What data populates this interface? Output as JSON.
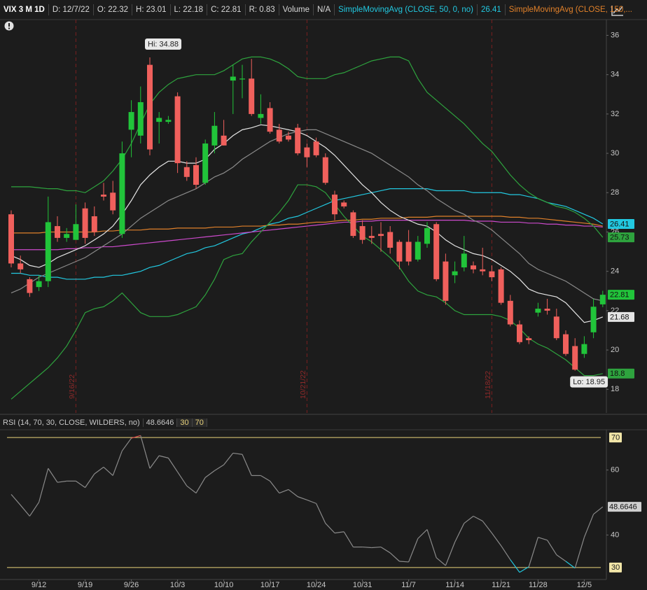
{
  "header": {
    "symbol": "VIX 3 M 1D",
    "items": [
      "D: 12/7/22",
      "O: 22.32",
      "H: 23.01",
      "L: 22.18",
      "C: 22.81",
      "R: 0.83"
    ],
    "volume": "Volume",
    "volume_value": "N/A",
    "studies": [
      "SimpleMovingAvg (CLOSE, 50, 0, no)",
      "SimpleMovingAvg (CLOSE, 150,..."
    ]
  },
  "chart_data": [
    {
      "type": "candlestick",
      "categories": [
        null,
        null,
        null,
        "9/12",
        null,
        null,
        null,
        null,
        "9/19",
        null,
        null,
        null,
        null,
        "9/26",
        null,
        null,
        null,
        null,
        "10/3",
        null,
        null,
        null,
        null,
        "10/10",
        null,
        null,
        null,
        null,
        "10/17",
        null,
        null,
        null,
        null,
        "10/24",
        null,
        null,
        null,
        null,
        "10/31",
        null,
        null,
        null,
        null,
        "11/7",
        null,
        null,
        null,
        null,
        "11/14",
        null,
        null,
        null,
        null,
        "11/21",
        null,
        null,
        null,
        "11/28",
        null,
        null,
        null,
        null,
        "12/5",
        null,
        null
      ],
      "open": [
        26.9,
        24.4,
        23.6,
        23.2,
        23.5,
        26.3,
        25.7,
        25.6,
        27.2,
        26.8,
        27.9,
        28.0,
        25.9,
        31.2,
        30.9,
        34.5,
        31.6,
        31.6,
        32.9,
        29.3,
        29.4,
        28.5,
        30.4,
        30.9,
        33.7,
        33.8,
        33.8,
        31.8,
        32.3,
        31.2,
        30.9,
        31.3,
        30.3,
        30.6,
        29.8,
        27.9,
        27.5,
        27.0,
        26.3,
        25.8,
        25.9,
        26.0,
        25.5,
        25.5,
        24.6,
        25.4,
        26.4,
        24.5,
        23.8,
        24.2,
        24.3,
        24.1,
        24.0,
        24.1,
        22.5,
        21.3,
        20.6,
        21.9,
        22.1,
        21.7,
        20.8,
        20.2,
        19.8,
        20.9,
        22.32
      ],
      "high": [
        27.1,
        24.8,
        23.7,
        23.8,
        27.8,
        26.8,
        26.2,
        27.4,
        27.5,
        27.3,
        28.5,
        28.6,
        30.6,
        32.7,
        33.4,
        34.88,
        32.1,
        31.9,
        33.1,
        29.6,
        29.8,
        30.7,
        32.1,
        31.7,
        34.5,
        34.5,
        34.8,
        33.0,
        32.6,
        31.5,
        31.1,
        31.5,
        30.5,
        30.8,
        30.0,
        28.1,
        27.6,
        27.1,
        26.6,
        26.3,
        26.5,
        26.3,
        25.6,
        26.1,
        25.8,
        26.5,
        26.5,
        24.9,
        24.5,
        25.8,
        24.5,
        25.2,
        24.3,
        24.2,
        22.8,
        21.5,
        20.7,
        22.4,
        22.6,
        22.1,
        21.0,
        20.6,
        20.7,
        22.6,
        23.01
      ],
      "low": [
        24.2,
        23.9,
        22.7,
        23.0,
        23.2,
        25.5,
        25.5,
        25.6,
        25.4,
        25.8,
        27.6,
        26.9,
        25.7,
        29.8,
        30.5,
        29.9,
        30.5,
        31.5,
        29.0,
        28.6,
        28.2,
        28.4,
        30.0,
        30.4,
        32.0,
        32.8,
        31.9,
        31.5,
        31.0,
        30.5,
        30.6,
        29.9,
        29.3,
        29.8,
        28.4,
        26.6,
        27.2,
        25.7,
        25.4,
        25.4,
        25.0,
        24.9,
        24.1,
        24.3,
        24.5,
        25.2,
        23.5,
        22.3,
        23.4,
        24.0,
        23.9,
        23.8,
        23.5,
        22.3,
        21.2,
        20.3,
        20.3,
        21.7,
        21.8,
        20.5,
        19.7,
        18.95,
        19.6,
        20.6,
        22.18
      ],
      "close": [
        24.4,
        24.1,
        22.9,
        23.5,
        26.5,
        25.7,
        25.9,
        26.4,
        25.7,
        26.0,
        27.8,
        27.1,
        30.0,
        32.1,
        32.6,
        30.2,
        31.8,
        31.7,
        29.5,
        28.8,
        28.4,
        30.5,
        31.4,
        30.4,
        33.9,
        33.8,
        32.0,
        32.0,
        31.1,
        30.6,
        30.7,
        30.0,
        29.8,
        29.9,
        28.5,
        26.9,
        27.3,
        25.8,
        25.6,
        25.7,
        25.8,
        25.2,
        24.5,
        24.5,
        25.5,
        26.2,
        23.6,
        22.5,
        24.0,
        24.9,
        24.1,
        24.0,
        23.7,
        22.4,
        21.3,
        20.4,
        20.5,
        22.1,
        22.0,
        20.6,
        19.8,
        19.0,
        20.3,
        22.2,
        22.81
      ],
      "up_color": "#21c43a",
      "down_color": "#f0605c",
      "series": [
        {
          "color": "#22c8e0",
          "show_last": true,
          "values": [
            23.9,
            23.9,
            23.8,
            23.8,
            23.7,
            23.7,
            23.6,
            23.6,
            23.6,
            23.7,
            23.7,
            23.8,
            23.8,
            23.9,
            24.0,
            24.2,
            24.3,
            24.5,
            24.7,
            24.9,
            25.0,
            25.2,
            25.3,
            25.5,
            25.7,
            25.9,
            26.0,
            26.2,
            26.4,
            26.5,
            26.7,
            26.8,
            27.0,
            27.2,
            27.4,
            27.6,
            27.7,
            27.8,
            27.9,
            28.0,
            28.1,
            28.2,
            28.2,
            28.2,
            28.2,
            28.2,
            28.1,
            28.1,
            28.1,
            28.1,
            28.0,
            28.0,
            28.0,
            28.0,
            27.9,
            27.9,
            27.8,
            27.7,
            27.5,
            27.4,
            27.3,
            27.1,
            26.9,
            26.7,
            26.41
          ]
        },
        {
          "color": "#e0802a",
          "show_last": false,
          "values": [
            25.95,
            25.95,
            25.95,
            25.95,
            26.0,
            26.0,
            26.0,
            26.0,
            26.0,
            26.0,
            26.05,
            26.05,
            26.1,
            26.1,
            26.1,
            26.15,
            26.15,
            26.15,
            26.2,
            26.2,
            26.2,
            26.2,
            26.25,
            26.25,
            26.25,
            26.3,
            26.3,
            26.3,
            26.35,
            26.35,
            26.4,
            26.4,
            26.45,
            26.5,
            26.5,
            26.55,
            26.6,
            26.6,
            26.65,
            26.65,
            26.7,
            26.7,
            26.7,
            26.75,
            26.75,
            26.75,
            26.8,
            26.8,
            26.8,
            26.8,
            26.8,
            26.8,
            26.8,
            26.8,
            26.75,
            26.75,
            26.7,
            26.7,
            26.65,
            26.6,
            26.55,
            26.5,
            26.45,
            26.4,
            26.3
          ]
        },
        {
          "color": "#cc4acc",
          "show_last": false,
          "values": [
            25.1,
            25.1,
            25.1,
            25.1,
            25.1,
            25.1,
            25.15,
            25.15,
            25.2,
            25.2,
            25.25,
            25.25,
            25.3,
            25.35,
            25.4,
            25.45,
            25.5,
            25.55,
            25.6,
            25.65,
            25.7,
            25.75,
            25.8,
            25.85,
            25.9,
            25.95,
            26.0,
            26.05,
            26.1,
            26.15,
            26.2,
            26.25,
            26.3,
            26.35,
            26.4,
            26.45,
            26.5,
            26.5,
            26.55,
            26.55,
            26.6,
            26.6,
            26.6,
            26.6,
            26.6,
            26.6,
            26.6,
            26.6,
            26.6,
            26.6,
            26.55,
            26.55,
            26.55,
            26.5,
            26.5,
            26.5,
            26.45,
            26.45,
            26.4,
            26.4,
            26.35,
            26.35,
            26.3,
            26.3,
            26.25
          ]
        },
        {
          "color": "#e4e4e4",
          "show_last": true,
          "values": [
            24.8,
            24.6,
            24.3,
            24.2,
            24.4,
            24.7,
            24.9,
            25.1,
            25.3,
            25.6,
            25.9,
            26.3,
            26.9,
            27.6,
            28.4,
            28.9,
            29.3,
            29.6,
            29.6,
            29.5,
            29.5,
            29.7,
            30.2,
            30.5,
            30.9,
            31.2,
            31.3,
            31.45,
            31.4,
            31.3,
            31.2,
            31.1,
            30.9,
            30.6,
            30.3,
            29.9,
            29.4,
            28.9,
            28.4,
            28.0,
            27.5,
            27.1,
            26.8,
            26.6,
            26.4,
            26.3,
            26.0,
            25.6,
            25.3,
            25.1,
            24.9,
            24.8,
            24.6,
            24.3,
            24.0,
            23.6,
            23.1,
            22.9,
            22.8,
            22.7,
            22.4,
            21.9,
            21.4,
            21.5,
            21.68
          ]
        },
        {
          "color": "#8a8a8a",
          "show_last": false,
          "values": [
            22.9,
            23.1,
            23.4,
            23.7,
            23.9,
            24.1,
            24.3,
            24.5,
            24.7,
            25.0,
            25.3,
            25.6,
            25.9,
            26.3,
            26.7,
            27.0,
            27.3,
            27.6,
            27.8,
            28.0,
            28.2,
            28.5,
            28.8,
            29.0,
            29.3,
            29.7,
            30.0,
            30.3,
            30.6,
            30.8,
            31.0,
            31.1,
            31.2,
            31.2,
            31.0,
            30.8,
            30.6,
            30.4,
            30.2,
            30.0,
            29.7,
            29.4,
            29.1,
            28.8,
            28.4,
            28.1,
            27.7,
            27.4,
            27.1,
            26.9,
            26.6,
            26.4,
            26.1,
            25.7,
            25.3,
            24.9,
            24.4,
            24.1,
            23.9,
            23.7,
            23.5,
            23.2,
            22.9,
            22.6,
            22.5
          ]
        },
        {
          "color": "#2ea33e",
          "show_last": true,
          "values": [
            28.3,
            28.3,
            28.3,
            28.25,
            28.2,
            28.2,
            28.1,
            28.1,
            28.0,
            28.3,
            28.6,
            29.1,
            29.7,
            30.5,
            31.5,
            32.5,
            33.1,
            33.5,
            33.8,
            33.9,
            34.0,
            34.0,
            34.0,
            34.2,
            34.5,
            34.8,
            34.9,
            34.9,
            34.8,
            34.6,
            34.3,
            33.9,
            33.8,
            33.8,
            33.8,
            34.0,
            34.1,
            34.3,
            34.5,
            34.7,
            34.8,
            34.9,
            34.9,
            34.7,
            33.8,
            33.1,
            32.7,
            32.3,
            31.9,
            31.5,
            31.0,
            30.5,
            30.1,
            29.5,
            28.9,
            28.4,
            28.0,
            27.7,
            27.5,
            27.3,
            27.2,
            27.0,
            26.7,
            26.3,
            25.73
          ]
        },
        {
          "color": "#2ea33e",
          "show_last": true,
          "values": [
            17.5,
            17.9,
            18.3,
            18.7,
            19.1,
            19.6,
            20.2,
            21.0,
            21.9,
            22.1,
            22.2,
            22.5,
            22.9,
            22.4,
            21.9,
            21.7,
            21.7,
            21.7,
            21.8,
            22.0,
            22.2,
            22.8,
            23.6,
            24.6,
            24.8,
            24.9,
            25.5,
            26.0,
            26.5,
            27.0,
            27.6,
            28.4,
            28.4,
            28.3,
            28.0,
            27.4,
            26.8,
            26.3,
            25.8,
            25.5,
            25.1,
            24.7,
            24.2,
            23.5,
            23.0,
            22.8,
            22.7,
            22.4,
            22.0,
            21.8,
            21.8,
            21.8,
            21.8,
            21.7,
            21.5,
            21.1,
            20.6,
            20.3,
            20.1,
            19.8,
            19.5,
            19.1,
            18.7,
            18.7,
            18.8
          ]
        }
      ],
      "ylim": [
        16.8,
        36.8
      ],
      "yticks": [
        18,
        20,
        22,
        24,
        26,
        28,
        30,
        32,
        34,
        36
      ],
      "hi_label": "Hi: 34.88",
      "lo_label": "Lo: 18.95",
      "expirations": [
        "9/16/22",
        "10/21/22",
        "11/18/22"
      ]
    },
    {
      "type": "line",
      "title": "RSI (14, 70, 30, CLOSE, WILDERS, no)",
      "color": "#8a8a8a",
      "overbought_color": "#e05050",
      "oversold_color": "#22c8e0",
      "values": [
        52.5,
        49.2,
        45.8,
        50.1,
        60.5,
        56.2,
        56.6,
        56.6,
        54.6,
        58.8,
        60.9,
        58.3,
        65.9,
        69.8,
        70.6,
        60.5,
        64.4,
        63.7,
        59.4,
        55.1,
        52.9,
        57.7,
        59.8,
        61.6,
        65.2,
        64.8,
        58.3,
        58.3,
        56.6,
        52.9,
        54.0,
        51.8,
        50.8,
        49.7,
        43.6,
        40.6,
        41.0,
        36.3,
        36.3,
        36.1,
        36.3,
        34.5,
        31.9,
        31.7,
        38.9,
        41.7,
        33.0,
        30.6,
        37.8,
        43.6,
        45.8,
        44.3,
        40.6,
        36.7,
        32.4,
        28.5,
        30.2,
        39.3,
        38.4,
        33.9,
        31.9,
        29.8,
        39.3,
        46.4,
        48.6646
      ],
      "levels": [
        30,
        70
      ],
      "level_color": "#e8d27a",
      "ylim": [
        26.3,
        72.4
      ],
      "yticks": [
        40,
        60
      ]
    }
  ]
}
